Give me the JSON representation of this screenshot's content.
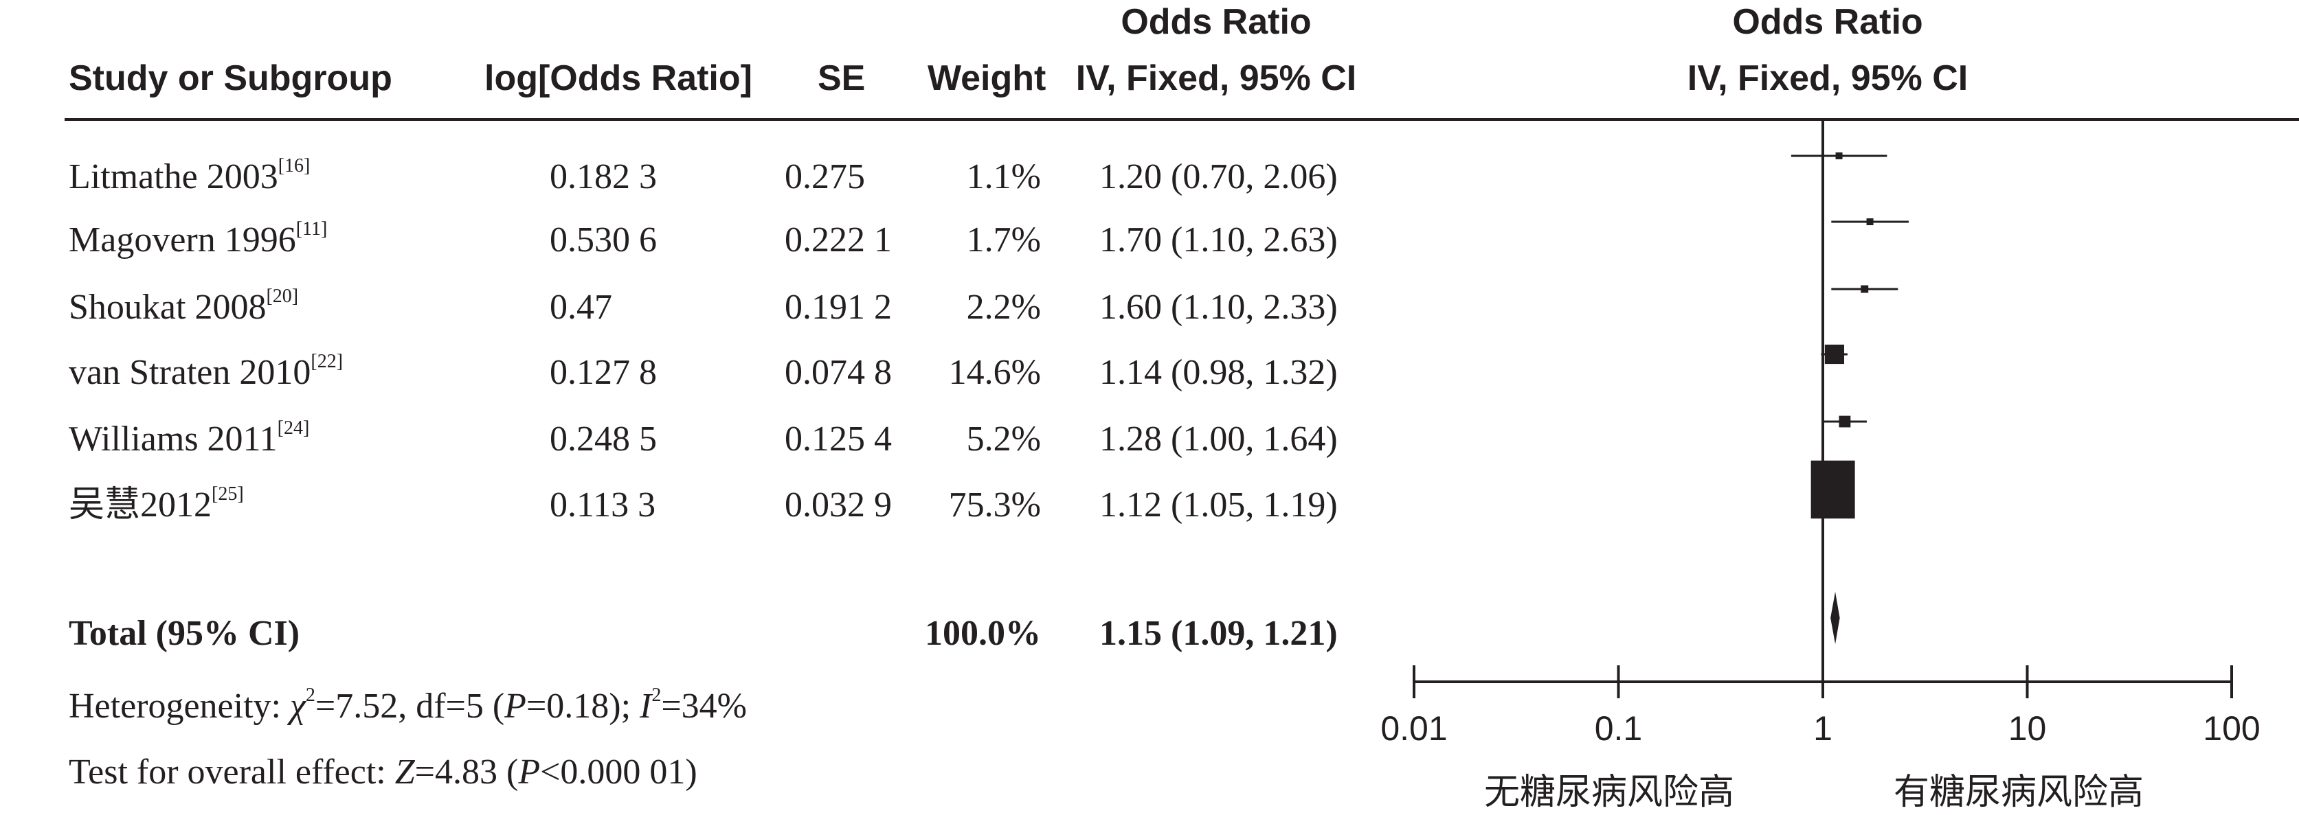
{
  "header": {
    "study": "Study or Subgroup",
    "log_or": "log[Odds Ratio]",
    "se": "SE",
    "weight": "Weight",
    "or_title": "Odds Ratio",
    "or_method": "IV, Fixed, 95% CI",
    "plot_title": "Odds Ratio",
    "plot_method": "IV, Fixed, 95% CI"
  },
  "rows": [
    {
      "study": "Litmathe 2003",
      "ref": "[16]",
      "log_or": "0.182 3",
      "se": "0.275",
      "weight": "1.1%",
      "ci_text": "1.20 (0.70, 2.06)"
    },
    {
      "study": "Magovern 1996",
      "ref": "[11]",
      "log_or": "0.530 6",
      "se": "0.222 1",
      "weight": "1.7%",
      "ci_text": "1.70 (1.10, 2.63)"
    },
    {
      "study": "Shoukat 2008",
      "ref": "[20]",
      "log_or": "0.47",
      "se": "0.191 2",
      "weight": "2.2%",
      "ci_text": "1.60 (1.10, 2.33)"
    },
    {
      "study": "van Straten 2010",
      "ref": "[22]",
      "log_or": "0.127 8",
      "se": "0.074 8",
      "weight": "14.6%",
      "ci_text": "1.14 (0.98, 1.32)"
    },
    {
      "study": "Williams 2011",
      "ref": "[24]",
      "log_or": "0.248 5",
      "se": "0.125 4",
      "weight": "5.2%",
      "ci_text": "1.28 (1.00, 1.64)"
    },
    {
      "study": "吴慧2012",
      "ref": "[25]",
      "log_or": "0.113 3",
      "se": "0.032 9",
      "weight": "75.3%",
      "ci_text": "1.12 (1.05, 1.19)"
    }
  ],
  "total": {
    "label": "Total (95% CI)",
    "weight": "100.0%",
    "ci_text": "1.15 (1.09, 1.21)"
  },
  "heterogeneity": {
    "prefix": "Heterogeneity: ",
    "chi": "χ",
    "chi_sup": "2",
    "chi_rest": "=7.52, df=5 (",
    "p": "P",
    "p_rest": "=0.18); ",
    "i": "I",
    "i_sup": "2",
    "i_rest": "=34%"
  },
  "overall_effect": {
    "prefix": "Test for overall effect: ",
    "z": "Z",
    "z_rest": "=4.83 (",
    "p": "P",
    "p_rest": "<0.000 01)"
  },
  "axis": {
    "ticks": [
      "0.01",
      "0.1",
      "1",
      "10",
      "100"
    ],
    "left_label": "无糖尿病风险高",
    "right_label": "有糖尿病风险高"
  },
  "chart_data": {
    "type": "forest",
    "x_scale": "log",
    "xlim": [
      0.01,
      100
    ],
    "null_line": 1,
    "studies": [
      {
        "name": "Litmathe 2003",
        "or": 1.2,
        "lower": 0.7,
        "upper": 2.06,
        "weight": 1.1
      },
      {
        "name": "Magovern 1996",
        "or": 1.7,
        "lower": 1.1,
        "upper": 2.63,
        "weight": 1.7
      },
      {
        "name": "Shoukat 2008",
        "or": 1.6,
        "lower": 1.1,
        "upper": 2.33,
        "weight": 2.2
      },
      {
        "name": "van Straten 2010",
        "or": 1.14,
        "lower": 0.98,
        "upper": 1.32,
        "weight": 14.6
      },
      {
        "name": "Williams 2011",
        "or": 1.28,
        "lower": 1.0,
        "upper": 1.64,
        "weight": 5.2
      },
      {
        "name": "吴慧2012",
        "or": 1.12,
        "lower": 1.05,
        "upper": 1.19,
        "weight": 75.3
      }
    ],
    "pooled": {
      "name": "Total (95% CI)",
      "or": 1.15,
      "lower": 1.09,
      "upper": 1.21
    }
  }
}
